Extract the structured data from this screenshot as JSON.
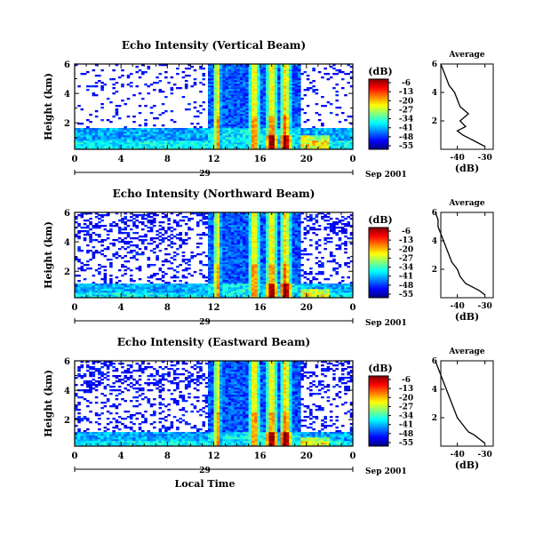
{
  "figure": {
    "xlabel": "Local Time",
    "date_label": "Sep 2001",
    "day_label": "29",
    "colorbar_title": "(dB)",
    "colorbar_ticks": [
      "-6",
      "-13",
      "-20",
      "-27",
      "-34",
      "-41",
      "-48",
      "-55"
    ],
    "x_ticks": [
      "0",
      "4",
      "8",
      "12",
      "16",
      "20",
      "0"
    ],
    "y_label": "Height (km)",
    "y_ticks": [
      "6",
      "4",
      "2"
    ],
    "avg_title": "Average",
    "avg_xlabel": "(dB)",
    "avg_y_ticks": [
      "6",
      "4",
      "2"
    ]
  },
  "chart_data": [
    {
      "type": "heatmap",
      "title": "Echo Intensity (Vertical Beam)",
      "xlabel": "Local Time",
      "ylabel": "Height (km)",
      "xlim": [
        0,
        24
      ],
      "ylim": [
        0.2,
        6
      ],
      "zlim": [
        -55,
        -6
      ],
      "z_units": "dB",
      "description": "Intensity field; strong echoes near 12 LT and 16-19 LT, boundary layer below ~1.5 km",
      "strong_columns_lt": [
        12.3,
        15.5,
        17.0,
        18.2
      ],
      "boundary_layer_top_km": 1.6
    },
    {
      "type": "line",
      "title": "Average",
      "xlabel": "(dB)",
      "x_ticks": [
        -40,
        -30
      ],
      "ylim": [
        0,
        6
      ],
      "y": [
        0.2,
        0.5,
        0.8,
        1.0,
        1.3,
        1.6,
        2.0,
        2.5,
        3.0,
        3.5,
        4.0,
        4.5,
        5.0,
        5.5,
        6.0
      ],
      "x": [
        -30,
        -33,
        -36,
        -38,
        -40,
        -37,
        -39,
        -36,
        -39,
        -40,
        -41,
        -43,
        -44,
        -45,
        -46
      ]
    },
    {
      "type": "heatmap",
      "title": "Echo Intensity (Northward Beam)",
      "xlabel": "Local Time",
      "ylabel": "Height (km)",
      "xlim": [
        0,
        24
      ],
      "ylim": [
        0.2,
        6
      ],
      "zlim": [
        -55,
        -6
      ],
      "z_units": "dB",
      "strong_columns_lt": [
        12.3,
        15.5,
        17.0,
        18.2
      ],
      "boundary_layer_top_km": 1.2
    },
    {
      "type": "line",
      "title": "Average",
      "xlabel": "(dB)",
      "x_ticks": [
        -40,
        -30
      ],
      "ylim": [
        0,
        6
      ],
      "y": [
        0.2,
        0.5,
        0.8,
        1.0,
        1.5,
        2.0,
        2.5,
        3.0,
        3.5,
        4.0,
        4.5,
        5.0,
        5.5,
        6.0
      ],
      "x": [
        -30,
        -32,
        -35,
        -37,
        -39,
        -40,
        -42,
        -43,
        -44,
        -45,
        -46,
        -47,
        -47,
        -48
      ]
    },
    {
      "type": "heatmap",
      "title": "Echo Intensity (Eastward Beam)",
      "xlabel": "Local Time",
      "ylabel": "Height (km)",
      "xlim": [
        0,
        24
      ],
      "ylim": [
        0.2,
        6
      ],
      "zlim": [
        -55,
        -6
      ],
      "z_units": "dB",
      "strong_columns_lt": [
        12.3,
        15.5,
        17.0,
        18.2
      ],
      "boundary_layer_top_km": 1.2
    },
    {
      "type": "line",
      "title": "Average",
      "xlabel": "(dB)",
      "x_ticks": [
        -40,
        -30
      ],
      "ylim": [
        0,
        6
      ],
      "y": [
        0.2,
        0.5,
        0.8,
        1.0,
        1.5,
        2.0,
        2.5,
        3.0,
        3.5,
        4.0,
        4.5,
        5.0,
        5.5,
        6.0
      ],
      "x": [
        -30,
        -32,
        -34,
        -36,
        -38,
        -40,
        -41,
        -42,
        -43,
        -44,
        -45,
        -46,
        -47,
        -48
      ]
    }
  ]
}
